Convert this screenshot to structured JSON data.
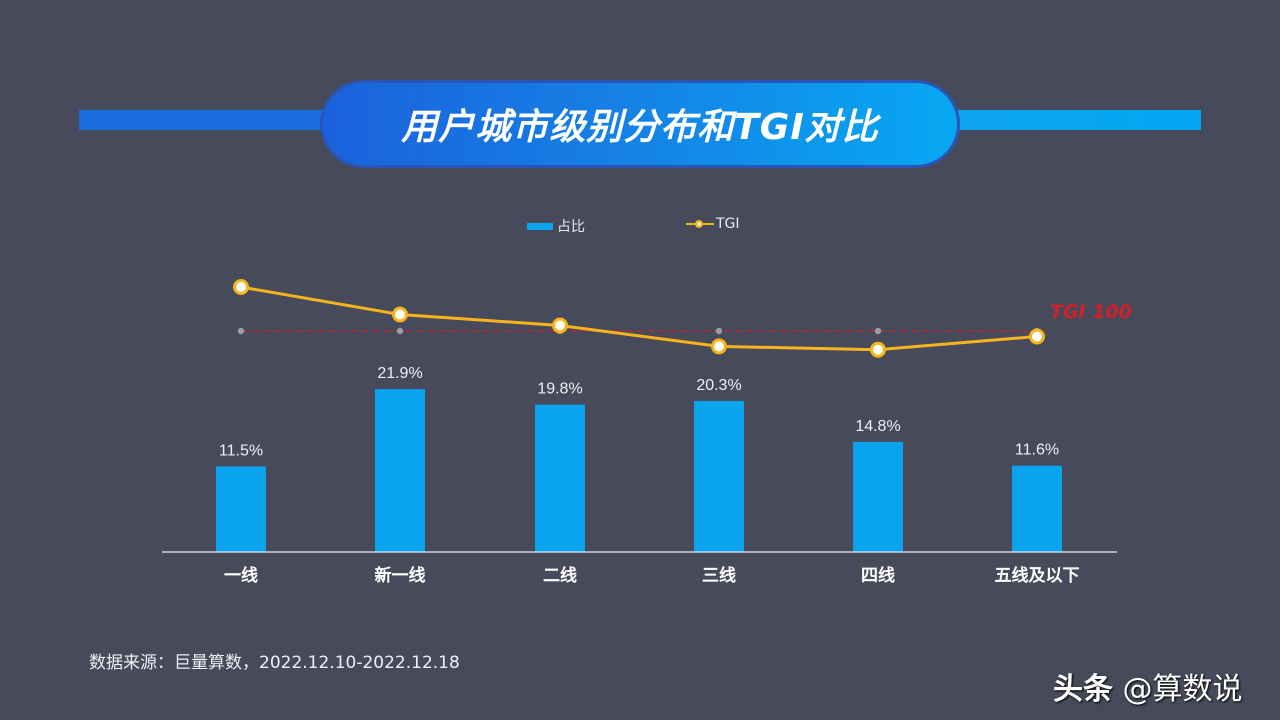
{
  "header": {
    "title": "用户城市级别分布和TGI对比"
  },
  "legend": {
    "bar_label": "占比",
    "line_label": "TGI"
  },
  "reference": {
    "label": "TGI 100",
    "value": 100,
    "color": "#d0202a"
  },
  "colors": {
    "background": "#474a5a",
    "bar": "#0aa3ee",
    "line": "#f5b51a",
    "title_gradient_start": "#1b62dc",
    "title_gradient_end": "#07a8f2"
  },
  "chart_data": {
    "type": "bar+line",
    "title": "用户城市级别分布和TGI对比",
    "categories": [
      "一线",
      "新一线",
      "二线",
      "三线",
      "四线",
      "五线及以下"
    ],
    "series": [
      {
        "name": "占比",
        "type": "bar",
        "values": [
          11.5,
          21.9,
          19.8,
          20.3,
          14.8,
          11.6
        ],
        "labels": [
          "11.5%",
          "21.9%",
          "19.8%",
          "20.3%",
          "14.8%",
          "11.6%"
        ],
        "unit": "%"
      },
      {
        "name": "TGI",
        "type": "line",
        "values": [
          140,
          115,
          105,
          86,
          83,
          95
        ]
      }
    ],
    "reference_line": {
      "name": "TGI 100",
      "value": 100,
      "style": "dashed",
      "color": "#d0202a"
    },
    "xlabel": "",
    "ylabel": "",
    "grid": false,
    "legend_position": "top"
  },
  "footer": {
    "source": "数据来源：巨量算数，2022.12.10-2022.12.18",
    "watermark_brand": "头条",
    "watermark_handle": "@算数说"
  }
}
